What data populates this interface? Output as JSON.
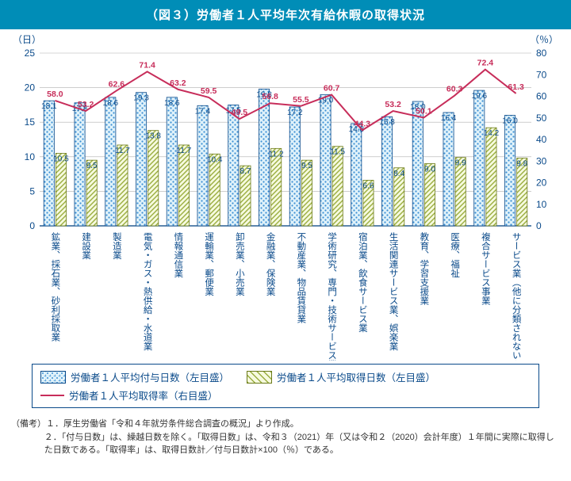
{
  "title": "（図３）労働者１人平均年次有給休暇の取得状況",
  "left_axis_unit": "（日）",
  "right_axis_unit": "（％）",
  "chart": {
    "type": "bar+line",
    "ylim_left": [
      0,
      25
    ],
    "ytick_step_left": 5,
    "ylim_right": [
      0,
      80
    ],
    "ytick_step_right": 10,
    "background_color": "#ffffff",
    "grid_color": "#b0b0b0",
    "bar1_fill": "#e0f2fa",
    "bar1_pattern": "dots-blue",
    "bar1_stroke": "#0a4a8a",
    "bar2_fill": "#f2f8d8",
    "bar2_pattern": "diag-olive",
    "bar2_stroke": "#6b7a1a",
    "line_color": "#c72d5a",
    "line_width": 2,
    "categories": [
      "鉱業、採石業、砂利採取業",
      "建設業",
      "製造業",
      "電気・ガス・熱供給・水道業",
      "情報通信業",
      "運輸業、郵便業",
      "卸売業、小売業",
      "金融業、保険業",
      "不動産業、物品賃貸業",
      "学術研究、専門・技術サービス業",
      "宿泊業、飲食サービス業",
      "生活関連サービス業、娯楽業",
      "教育、学習支援業",
      "医療、福祉",
      "複合サービス事業",
      "サービス業（他に分類されないもの）"
    ],
    "granted_days": [
      18.1,
      17.8,
      18.6,
      19.3,
      18.6,
      17.4,
      17.5,
      19.8,
      17.2,
      19.0,
      14.8,
      15.8,
      18.0,
      16.4,
      19.6,
      16.0
    ],
    "taken_days": [
      10.5,
      9.5,
      11.7,
      13.8,
      11.7,
      10.4,
      8.7,
      11.2,
      9.5,
      11.5,
      6.6,
      8.4,
      9.0,
      9.9,
      14.2,
      9.8
    ],
    "take_rate_pct": [
      58.0,
      53.2,
      62.6,
      71.4,
      63.2,
      59.5,
      49.5,
      56.8,
      55.5,
      60.7,
      44.3,
      53.2,
      50.1,
      60.3,
      72.4,
      61.3
    ]
  },
  "legend": {
    "bar1": "労働者１人平均付与日数（左目盛）",
    "bar2": "労働者１人平均取得日数（左目盛）",
    "line": "労働者１人平均取得率（右目盛）"
  },
  "notes_label": "（備考）",
  "notes": [
    "１．厚生労働省「令和４年就労条件総合調査の概況」より作成。",
    "２．「付与日数」は、繰越日数を除く。「取得日数」は、令和３（2021）年（又は令和２（2020）会計年度）１年間に実際に取得した日数である。「取得率」は、取得日数計／付与日数計×100（％）である。"
  ]
}
